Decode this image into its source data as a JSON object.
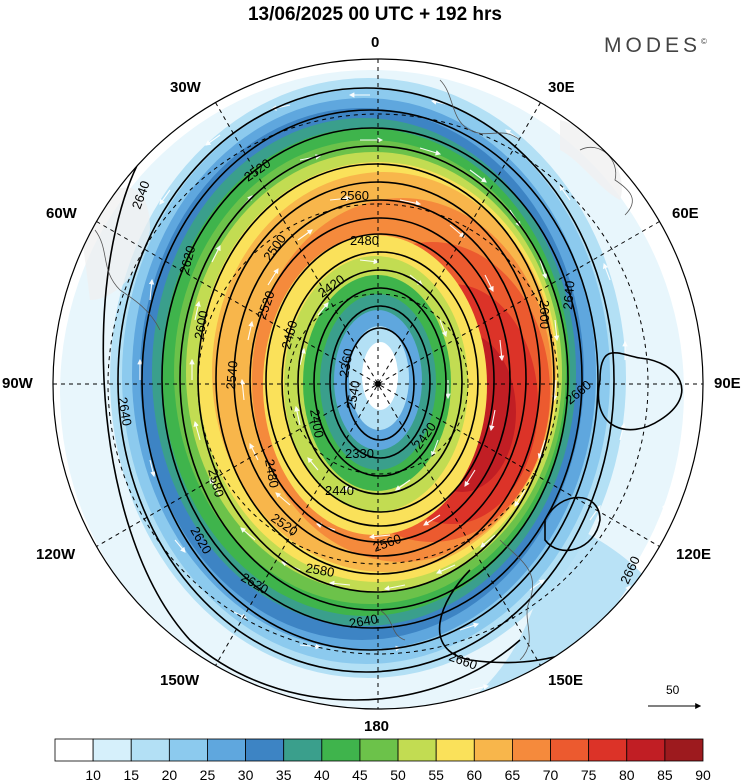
{
  "title": "13/06/2025  00 UTC  + 192 hrs",
  "brand": "MODES",
  "brand_mark": "©",
  "longitude_labels": {
    "lon_0": "0",
    "lon_30e": "30E",
    "lon_60e": "60E",
    "lon_90e": "90E",
    "lon_120e": "120E",
    "lon_150e": "150E",
    "lon_180": "180",
    "lon_150w": "150W",
    "lon_120w": "120W",
    "lon_90w": "90W",
    "lon_60w": "60W",
    "lon_30w": "30W"
  },
  "vector_reference": "50",
  "colorbar": {
    "ticks": [
      "10",
      "15",
      "20",
      "25",
      "30",
      "35",
      "40",
      "45",
      "50",
      "55",
      "60",
      "65",
      "70",
      "75",
      "80",
      "85",
      "90"
    ],
    "colors": [
      "#ffffff",
      "#d6f0fb",
      "#b3e0f5",
      "#8ccaee",
      "#5fa7de",
      "#3d84c4",
      "#3a9f8c",
      "#3fb44c",
      "#6cc24a",
      "#c2dc52",
      "#fae15a",
      "#f8b64b",
      "#f58a3c",
      "#ec5a2f",
      "#dc3328",
      "#c11e24",
      "#9d1a1e"
    ]
  },
  "contour_labels": [
    {
      "id": "c2640-left",
      "text": "2640"
    },
    {
      "id": "c2640-left2",
      "text": "2640"
    },
    {
      "id": "c2640-bottom",
      "text": "2640"
    },
    {
      "id": "c2640-right",
      "text": "2640"
    },
    {
      "id": "c2660-right",
      "text": "2660"
    },
    {
      "id": "c2660-rb",
      "text": "2660"
    },
    {
      "id": "c2660-bottom",
      "text": "2660"
    },
    {
      "id": "c2620-left",
      "text": "2620"
    },
    {
      "id": "c2620-bottom",
      "text": "2620"
    },
    {
      "id": "c2620-l2",
      "text": "2620"
    },
    {
      "id": "c2600-left",
      "text": "2600"
    },
    {
      "id": "c2600-right",
      "text": "2600"
    },
    {
      "id": "c2580-left",
      "text": "2580"
    },
    {
      "id": "c2580-bottom",
      "text": "2580"
    },
    {
      "id": "c2560-top",
      "text": "2560"
    },
    {
      "id": "c2560-bottom",
      "text": "2560"
    },
    {
      "id": "c2540-left",
      "text": "2540"
    },
    {
      "id": "c2540-mid",
      "text": "2540"
    },
    {
      "id": "c2520-top",
      "text": "2520"
    },
    {
      "id": "c2520-left",
      "text": "2520"
    },
    {
      "id": "c2520-bottom",
      "text": "2520"
    },
    {
      "id": "c2500-left",
      "text": "2500"
    },
    {
      "id": "c2480-top",
      "text": "2480"
    },
    {
      "id": "c2480-left",
      "text": "2480"
    },
    {
      "id": "c2460-left",
      "text": "2460"
    },
    {
      "id": "c2440-bottom",
      "text": "2440"
    },
    {
      "id": "c2420-top",
      "text": "2420"
    },
    {
      "id": "c2420-right",
      "text": "2420"
    },
    {
      "id": "c2400-left",
      "text": "2400"
    },
    {
      "id": "c2360-center",
      "text": "2360"
    },
    {
      "id": "c2330-bottom",
      "text": "2330"
    }
  ]
}
